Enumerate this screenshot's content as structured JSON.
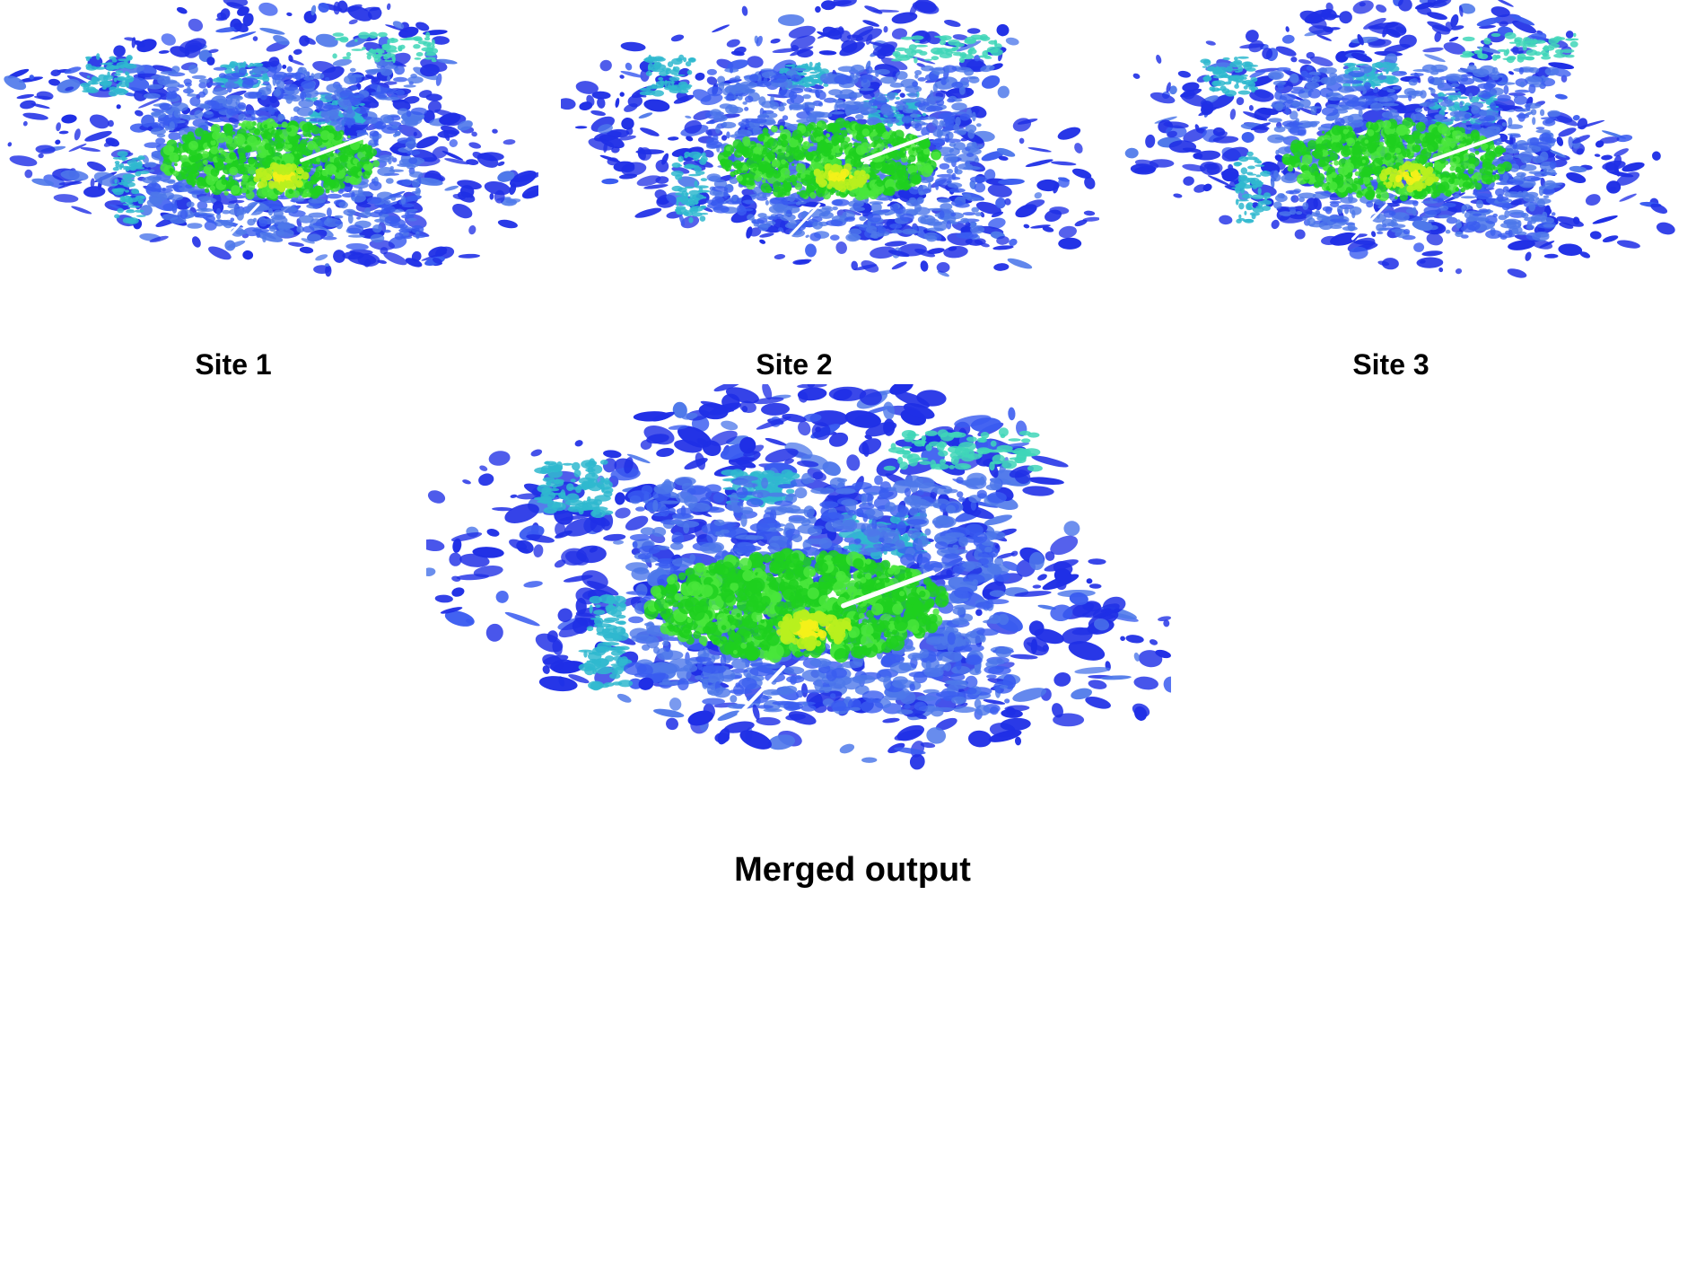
{
  "panels": [
    {
      "label": "Site 1"
    },
    {
      "label": "Site 2"
    },
    {
      "label": "Site 3"
    },
    {
      "label": "Merged output"
    }
  ],
  "palette": {
    "background": "#ffffff",
    "deep_blue": "#1f2fe6",
    "blue": "#3a5cf0",
    "mid_blue": "#4e78ea",
    "cyan": "#2fb8cf",
    "teal": "#3fd6b8",
    "green": "#1ed01e",
    "bright_green": "#49e63b",
    "yellow_green": "#b8f01e",
    "yellow": "#f4f11a",
    "caption_text": "#000000"
  }
}
